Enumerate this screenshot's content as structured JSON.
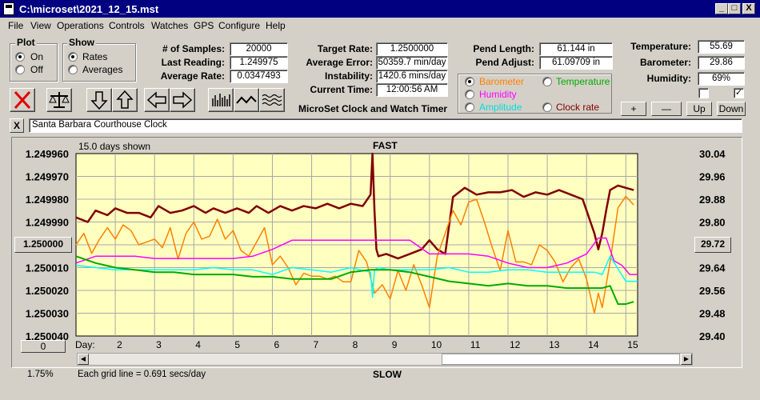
{
  "window": {
    "title": "C:\\microset\\2021_12_15.mst",
    "min": "_",
    "max": "□",
    "close": "X"
  },
  "menu": [
    "File",
    "View",
    "Operations",
    "Controls",
    "Watches",
    "GPS",
    "Configure",
    "Help"
  ],
  "plot_group": {
    "title": "Plot",
    "on": "On",
    "off": "Off"
  },
  "show_group": {
    "title": "Show",
    "rates": "Rates",
    "averages": "Averages"
  },
  "stats": {
    "samples_label": "# of Samples:",
    "samples": "20000",
    "last_label": "Last Reading:",
    "last": "1.249975",
    "avg_rate_label": "Average Rate:",
    "avg_rate": "0.0347493",
    "target_label": "Target Rate:",
    "target": "1.2500000",
    "avg_err_label": "Average Error:",
    "avg_err": "50359.7 min/day",
    "instab_label": "Instability:",
    "instab": "1420.6 mins/day",
    "time_label": "Current Time:",
    "time": "12:00:56 AM",
    "pend_len_label": "Pend Length:",
    "pend_len": "61.144 in",
    "pend_adj_label": "Pend Adjust:",
    "pend_adj": "61.09709 in",
    "temp_label": "Temperature:",
    "temp": "55.69",
    "baro_label": "Barometer:",
    "baro": "29.86",
    "hum_label": "Humidity:",
    "hum": "69%"
  },
  "app_caption": "MicroSet Clock and Watch Timer",
  "legend": {
    "barometer": "Barometer",
    "temperature": "Temperature",
    "humidity": "Humidity",
    "amplitude": "Amplitude",
    "clock_rate": "Clock rate"
  },
  "scale_buttons": {
    "plus": "+",
    "minus": "—",
    "up": "Up",
    "down": "Down"
  },
  "clock_name": "Santa Barbara Courthouse Clock",
  "clear_button": "X",
  "plot": {
    "days_shown": "15.0 days shown",
    "fast": "FAST",
    "slow": "SLOW",
    "left_button": "1.250000",
    "right_button": "29.72",
    "bottom_left_button": "0",
    "percent": "1.75%",
    "grid_note": "Each grid line = 0.691 secs/day",
    "day_label": "Day:"
  },
  "colors": {
    "clock_rate": "#800000",
    "barometer": "#ff8000",
    "humidity": "#ff00ff",
    "amplitude": "#00ffff",
    "temperature": "#00aa00",
    "plot_bg": "#ffffc0"
  },
  "chart_data": {
    "type": "line",
    "x_range": [
      1,
      15.3
    ],
    "y_left_range": [
      1.24996,
      1.25004
    ],
    "y_left_reversed": true,
    "y_right_range": [
      29.4,
      30.04
    ],
    "y_left_ticks": [
      "1.249960",
      "1.249970",
      "1.249980",
      "1.249990",
      "1.250000",
      "1.250010",
      "1.250020",
      "1.250030",
      "1.250040"
    ],
    "y_right_ticks": [
      "30.04",
      "29.96",
      "29.88",
      "29.80",
      "29.72",
      "29.64",
      "29.56",
      "29.48",
      "29.40"
    ],
    "x_ticks": [
      "2",
      "3",
      "4",
      "5",
      "6",
      "7",
      "8",
      "9",
      "10",
      "11",
      "12",
      "13",
      "14",
      "15"
    ],
    "grid": true,
    "series": [
      {
        "key": "clock_rate",
        "name": "Clock rate",
        "color": "#800000",
        "width": 2.5,
        "x": [
          1,
          1.3,
          1.5,
          1.8,
          2.0,
          2.3,
          2.6,
          2.9,
          3.1,
          3.4,
          3.7,
          4.0,
          4.3,
          4.5,
          4.8,
          5.1,
          5.4,
          5.6,
          5.9,
          6.2,
          6.5,
          6.8,
          7.1,
          7.4,
          7.7,
          8.0,
          8.3,
          8.5,
          8.55,
          8.6,
          8.65,
          8.7,
          8.9,
          9.2,
          9.5,
          9.8,
          10.0,
          10.2,
          10.4,
          10.6,
          10.9,
          11.2,
          11.5,
          11.8,
          12.1,
          12.4,
          12.7,
          13.0,
          13.3,
          13.6,
          13.9,
          14.0,
          14.1,
          14.2,
          14.3,
          14.4,
          14.5,
          14.6,
          14.8,
          15.0,
          15.2
        ],
        "y": [
          1.249988,
          1.24999,
          1.249985,
          1.249987,
          1.249984,
          1.249986,
          1.249986,
          1.249988,
          1.249983,
          1.249986,
          1.249985,
          1.249983,
          1.249986,
          1.249984,
          1.249986,
          1.249984,
          1.249986,
          1.249983,
          1.249986,
          1.249983,
          1.249985,
          1.249983,
          1.249984,
          1.249982,
          1.249984,
          1.249982,
          1.249983,
          1.249978,
          1.24996,
          1.249985,
          1.250002,
          1.250005,
          1.250004,
          1.250006,
          1.250004,
          1.250002,
          1.249998,
          1.250002,
          1.250004,
          1.249979,
          1.249975,
          1.249978,
          1.249977,
          1.249977,
          1.249976,
          1.249979,
          1.249977,
          1.249978,
          1.249976,
          1.249978,
          1.24998,
          1.249985,
          1.24999,
          1.249995,
          1.250002,
          1.249995,
          1.249985,
          1.249976,
          1.249974,
          1.249975,
          1.249976
        ]
      },
      {
        "key": "barometer",
        "name": "Barometer",
        "color": "#ff8000",
        "width": 1.5,
        "axis": "right",
        "x": [
          1,
          1.2,
          1.4,
          1.6,
          1.8,
          2.0,
          2.2,
          2.4,
          2.6,
          2.8,
          3.0,
          3.2,
          3.4,
          3.6,
          3.8,
          4.0,
          4.2,
          4.4,
          4.6,
          4.8,
          5.0,
          5.2,
          5.4,
          5.6,
          5.8,
          6.0,
          6.2,
          6.4,
          6.6,
          6.8,
          7.0,
          7.2,
          7.4,
          7.6,
          7.8,
          8.0,
          8.2,
          8.4,
          8.6,
          8.8,
          9.0,
          9.2,
          9.4,
          9.6,
          9.8,
          10.0,
          10.2,
          10.4,
          10.6,
          10.8,
          11.0,
          11.2,
          11.4,
          11.6,
          11.8,
          12.0,
          12.2,
          12.4,
          12.6,
          12.8,
          13.0,
          13.2,
          13.4,
          13.6,
          13.8,
          14.0,
          14.2,
          14.3,
          14.4,
          14.6,
          14.8,
          15.0,
          15.2
        ],
        "y": [
          29.72,
          29.76,
          29.69,
          29.74,
          29.78,
          29.74,
          29.79,
          29.77,
          29.72,
          29.73,
          29.74,
          29.71,
          29.78,
          29.67,
          29.76,
          29.8,
          29.74,
          29.75,
          29.81,
          29.74,
          29.77,
          29.7,
          29.68,
          29.73,
          29.78,
          29.65,
          29.68,
          29.64,
          29.58,
          29.62,
          29.61,
          29.61,
          29.6,
          29.61,
          29.59,
          29.59,
          29.7,
          29.66,
          29.55,
          29.58,
          29.53,
          29.63,
          29.56,
          29.65,
          29.58,
          29.5,
          29.68,
          29.76,
          29.84,
          29.79,
          29.87,
          29.88,
          29.8,
          29.71,
          29.63,
          29.77,
          29.66,
          29.66,
          29.65,
          29.72,
          29.7,
          29.66,
          29.59,
          29.64,
          29.67,
          29.6,
          29.48,
          29.55,
          29.5,
          29.66,
          29.85,
          29.89,
          29.86
        ]
      },
      {
        "key": "humidity",
        "name": "Humidity",
        "color": "#ff00ff",
        "width": 1.5,
        "x": [
          1,
          1.5,
          2.0,
          2.5,
          3.0,
          3.5,
          4.0,
          4.5,
          5.0,
          5.5,
          6.0,
          6.5,
          7.0,
          7.5,
          8.0,
          8.5,
          9.0,
          9.5,
          10.0,
          10.5,
          11.0,
          11.5,
          12.0,
          12.5,
          13.0,
          13.5,
          14.0,
          14.3,
          14.5,
          14.7,
          14.9,
          15.1,
          15.3
        ],
        "y": [
          1.250008,
          1.250005,
          1.250005,
          1.250005,
          1.250006,
          1.250006,
          1.250006,
          1.250006,
          1.250006,
          1.250005,
          1.250002,
          1.249998,
          1.249998,
          1.249998,
          1.249998,
          1.249998,
          1.249998,
          1.249998,
          1.250004,
          1.250004,
          1.250004,
          1.250005,
          1.250008,
          1.25001,
          1.25001,
          1.250008,
          1.250004,
          1.249997,
          1.249997,
          1.250007,
          1.250009,
          1.250013,
          1.250013
        ]
      },
      {
        "key": "amplitude",
        "name": "Amplitude",
        "color": "#00ffff",
        "width": 1.5,
        "x": [
          1,
          1.5,
          2.0,
          2.5,
          3.0,
          3.5,
          4.0,
          4.5,
          5.0,
          5.5,
          6.0,
          6.5,
          7.0,
          7.5,
          8.0,
          8.5,
          8.55,
          8.6,
          8.7,
          9.0,
          9.5,
          10.0,
          10.5,
          11.0,
          11.5,
          12.0,
          12.5,
          13.0,
          13.5,
          14.0,
          14.2,
          14.4,
          14.6,
          15.0,
          15.3
        ],
        "y": [
          1.250009,
          1.25001,
          1.250011,
          1.250011,
          1.250011,
          1.250011,
          1.250011,
          1.25001,
          1.250011,
          1.250011,
          1.250013,
          1.25001,
          1.250011,
          1.250012,
          1.25001,
          1.250012,
          1.250023,
          1.250011,
          1.25001,
          1.250011,
          1.250011,
          1.250011,
          1.25001,
          1.250012,
          1.250012,
          1.250011,
          1.250011,
          1.250012,
          1.250012,
          1.250012,
          1.250012,
          1.250013,
          1.250005,
          1.250016,
          1.250016
        ]
      },
      {
        "key": "temperature",
        "name": "Temperature",
        "color": "#00aa00",
        "width": 2,
        "x": [
          1,
          1.5,
          2.0,
          2.5,
          3.0,
          3.5,
          4.0,
          4.5,
          5.0,
          5.5,
          6.0,
          6.5,
          7.0,
          7.5,
          8.0,
          8.5,
          9.0,
          9.5,
          10.0,
          10.5,
          11.0,
          11.5,
          12.0,
          12.5,
          13.0,
          13.5,
          14.0,
          14.2,
          14.4,
          14.6,
          14.8,
          15.0,
          15.2
        ],
        "y": [
          1.250005,
          1.250008,
          1.25001,
          1.250011,
          1.250012,
          1.250012,
          1.250013,
          1.250013,
          1.250013,
          1.250014,
          1.250014,
          1.250015,
          1.250015,
          1.250015,
          1.250012,
          1.250011,
          1.250011,
          1.250012,
          1.250014,
          1.250016,
          1.250017,
          1.250018,
          1.250017,
          1.250018,
          1.250018,
          1.250019,
          1.250019,
          1.250019,
          1.250019,
          1.250018,
          1.250026,
          1.250026,
          1.250025
        ]
      }
    ]
  }
}
